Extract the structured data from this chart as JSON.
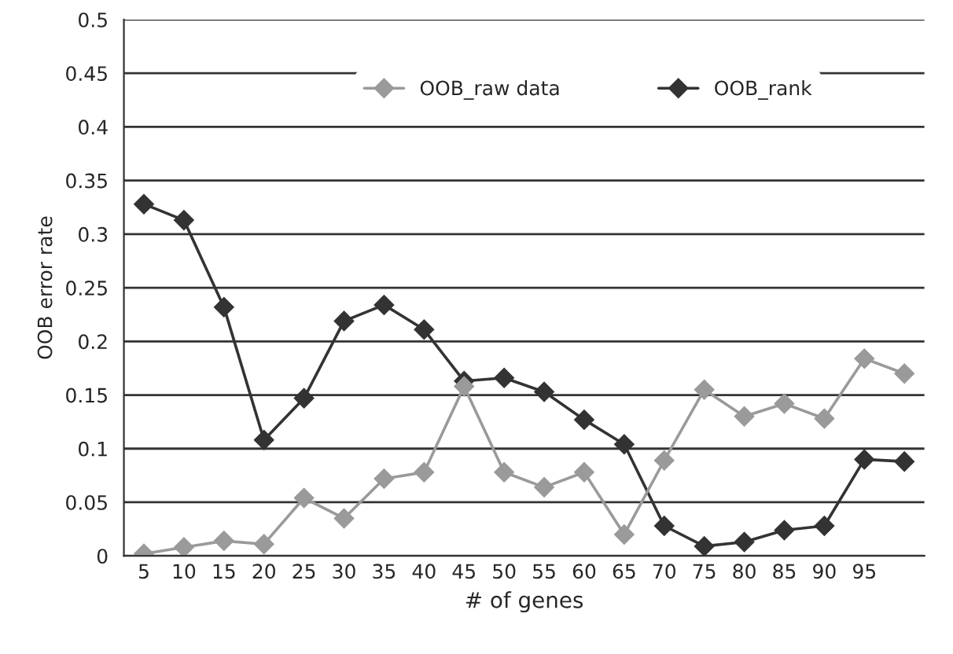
{
  "chart_data": {
    "type": "line",
    "xlabel": "# of genes",
    "ylabel": "OOB error rate",
    "categories": [
      "5",
      "10",
      "15",
      "20",
      "25",
      "30",
      "35",
      "40",
      "45",
      "50",
      "55",
      "60",
      "65",
      "70",
      "75",
      "80",
      "85",
      "90",
      "95",
      null
    ],
    "series": [
      {
        "name": "OOB_raw data",
        "color": "#9a9a9a",
        "values": [
          0.002,
          0.008,
          0.014,
          0.011,
          0.054,
          0.035,
          0.072,
          0.078,
          0.158,
          0.078,
          0.064,
          0.078,
          0.02,
          0.089,
          0.155,
          0.13,
          0.142,
          0.128,
          0.184,
          0.17
        ]
      },
      {
        "name": "OOB_rank",
        "color": "#333333",
        "values": [
          0.328,
          0.313,
          0.232,
          0.108,
          0.147,
          0.219,
          0.234,
          0.211,
          0.163,
          0.166,
          0.153,
          0.127,
          0.104,
          0.028,
          0.009,
          0.013,
          0.024,
          0.028,
          0.09,
          0.088
        ]
      }
    ],
    "ylim": [
      0,
      0.5
    ],
    "yticks": [
      0,
      0.05,
      0.1,
      0.15,
      0.2,
      0.25,
      0.3,
      0.35,
      0.4,
      0.45,
      0.5
    ],
    "grid": "y",
    "legend": "top",
    "marker": "diamond",
    "line_style": "solid"
  }
}
